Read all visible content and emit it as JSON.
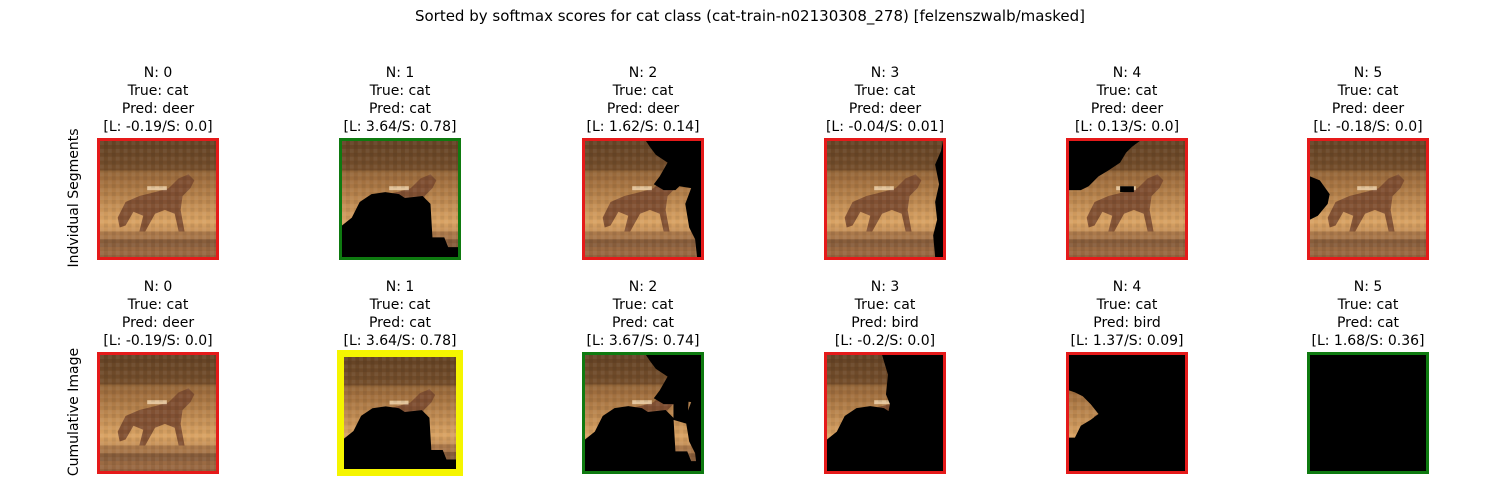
{
  "suptitle": "Sorted by softmax scores for cat class (cat-train-n02130308_278) [felzenszwalb/masked]",
  "rows": [
    {
      "label": "Indvidual Segments",
      "cells": [
        {
          "n": "N: 0",
          "true": "True: cat",
          "pred": "Pred: deer",
          "scores": "[L: -0.19/S: 0.0]",
          "border": "#e51a1a",
          "mask": "none"
        },
        {
          "n": "N: 1",
          "true": "True: cat",
          "pred": "Pred: cat",
          "scores": "[L: 3.64/S: 0.78]",
          "border": "#0e7a10",
          "mask": "bottom-blob"
        },
        {
          "n": "N: 2",
          "true": "True: cat",
          "pred": "Pred: deer",
          "scores": "[L: 1.62/S: 0.14]",
          "border": "#e51a1a",
          "mask": "top-right"
        },
        {
          "n": "N: 3",
          "true": "True: cat",
          "pred": "Pred: deer",
          "scores": "[L: -0.04/S: 0.01]",
          "border": "#e51a1a",
          "mask": "right-strip"
        },
        {
          "n": "N: 4",
          "true": "True: cat",
          "pred": "Pred: deer",
          "scores": "[L: 0.13/S: 0.0]",
          "border": "#e51a1a",
          "mask": "top-left"
        },
        {
          "n": "N: 5",
          "true": "True: cat",
          "pred": "Pred: deer",
          "scores": "[L: -0.18/S: 0.0]",
          "border": "#e51a1a",
          "mask": "left-notch"
        }
      ]
    },
    {
      "label": "Cumulative Image",
      "cells": [
        {
          "n": "N: 0",
          "true": "True: cat",
          "pred": "Pred: deer",
          "scores": "[L: -0.19/S: 0.0]",
          "border": "#e51a1a",
          "mask": "none"
        },
        {
          "n": "N: 1",
          "true": "True: cat",
          "pred": "Pred: cat",
          "scores": "[L: 3.64/S: 0.78]",
          "border": "#f5f500",
          "mask": "bottom-blob"
        },
        {
          "n": "N: 2",
          "true": "True: cat",
          "pred": "Pred: cat",
          "scores": "[L: 3.67/S: 0.74]",
          "border": "#0e7a10",
          "mask": "cum2"
        },
        {
          "n": "N: 3",
          "true": "True: cat",
          "pred": "Pred: bird",
          "scores": "[L: -0.2/S: 0.0]",
          "border": "#e51a1a",
          "mask": "cum3"
        },
        {
          "n": "N: 4",
          "true": "True: cat",
          "pred": "Pred: bird",
          "scores": "[L: 1.37/S: 0.09]",
          "border": "#e51a1a",
          "mask": "cum4"
        },
        {
          "n": "N: 5",
          "true": "True: cat",
          "pred": "Pred: cat",
          "scores": "[L: 1.68/S: 0.36]",
          "border": "#0e7a10",
          "mask": "all"
        }
      ]
    }
  ]
}
